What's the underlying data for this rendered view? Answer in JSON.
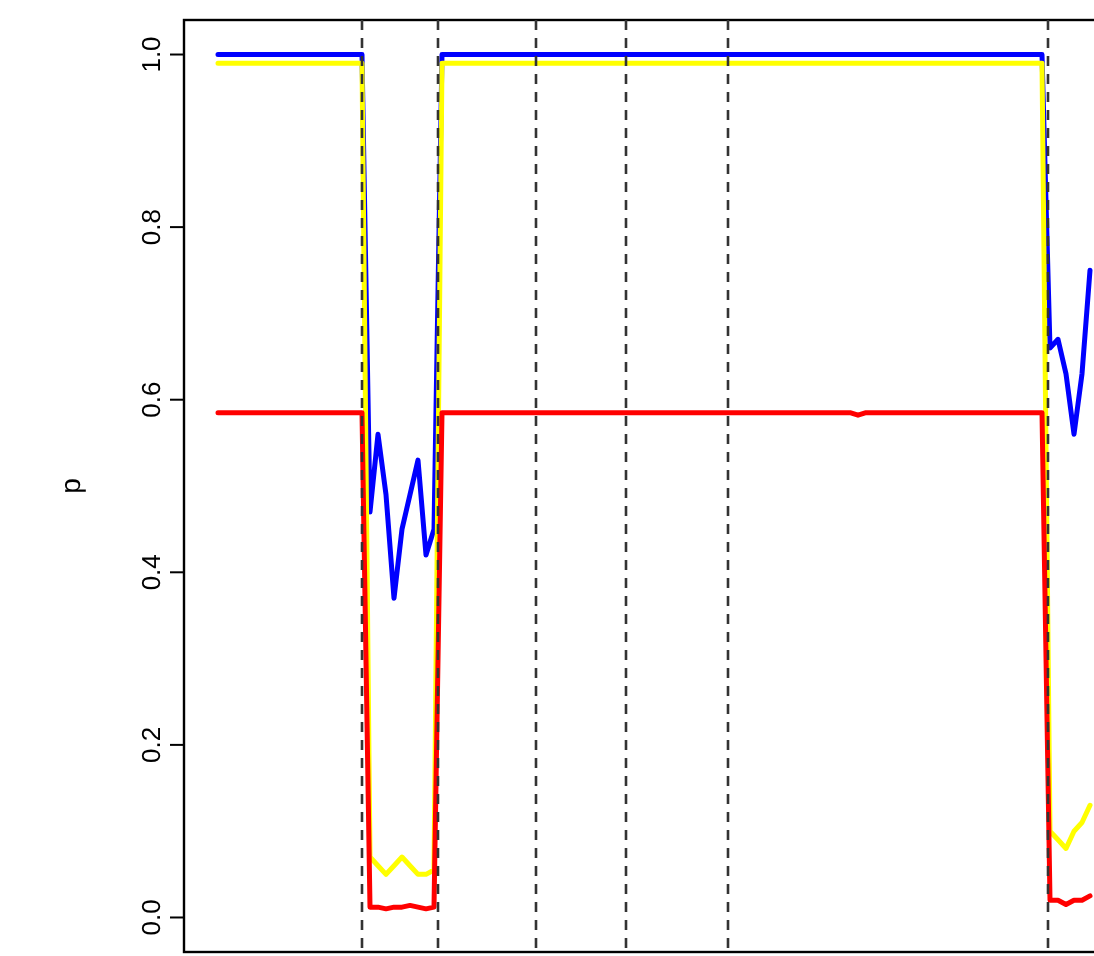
{
  "chart_data": {
    "type": "line",
    "ylabel": "p",
    "categories": [
      null,
      null,
      null,
      null,
      null,
      null,
      null,
      null,
      null,
      null,
      null,
      null,
      null,
      null,
      null,
      null,
      null,
      null,
      null,
      null,
      null,
      null,
      null,
      null,
      null,
      null,
      null,
      null,
      null,
      null,
      null,
      null,
      null,
      null,
      null,
      null,
      null,
      null,
      null,
      null,
      null,
      null,
      null,
      null,
      null,
      null,
      null,
      null,
      null,
      null,
      null,
      null,
      null,
      null,
      null,
      null,
      null,
      null,
      null,
      null,
      null,
      null,
      null,
      null,
      null,
      null,
      null,
      null,
      null,
      null,
      null,
      null,
      null,
      null,
      null,
      null,
      null,
      null,
      null,
      null,
      null,
      null,
      null,
      null,
      null,
      null,
      null,
      null,
      null,
      null,
      null,
      null,
      null,
      null,
      null,
      null,
      null,
      null,
      null,
      null,
      null,
      null,
      null,
      null,
      null,
      null,
      null,
      null,
      null,
      null
    ],
    "ylim": [
      -0.04,
      1.04
    ],
    "yticks": [
      {
        "value": 0,
        "label": "0.0"
      },
      {
        "value": 0.2,
        "label": "0.2"
      },
      {
        "value": 0.4,
        "label": "0.4"
      },
      {
        "value": 0.6,
        "label": "0.6"
      },
      {
        "value": 0.8,
        "label": "0.8"
      },
      {
        "value": 1,
        "label": "1.0"
      }
    ],
    "tick_labels": "y",
    "grid": false,
    "line_style": "solid",
    "marker": "none",
    "series": [
      {
        "color": "#0000ff",
        "values": [
          1,
          1,
          1,
          1,
          1,
          1,
          1,
          1,
          1,
          1,
          1,
          1,
          1,
          1,
          1,
          1,
          1,
          1,
          1,
          0.47,
          0.56,
          0.49,
          0.37,
          0.45,
          0.49,
          0.53,
          0.42,
          0.45,
          1,
          1,
          1,
          1,
          1,
          1,
          1,
          1,
          1,
          1,
          1,
          1,
          1,
          1,
          1,
          1,
          1,
          1,
          1,
          1,
          1,
          1,
          1,
          1,
          1,
          1,
          1,
          1,
          1,
          1,
          1,
          1,
          1,
          1,
          1,
          1,
          1,
          1,
          1,
          1,
          1,
          1,
          1,
          1,
          1,
          1,
          1,
          1,
          1,
          1,
          1,
          1,
          1,
          1,
          1,
          1,
          1,
          1,
          1,
          1,
          1,
          1,
          1,
          1,
          1,
          1,
          1,
          1,
          1,
          1,
          1,
          1,
          1,
          1,
          1,
          1,
          0.66,
          0.67,
          0.63,
          0.56,
          0.63,
          0.75
        ]
      },
      {
        "color": "#ffff00",
        "values": [
          0.99,
          0.99,
          0.99,
          0.99,
          0.99,
          0.99,
          0.99,
          0.99,
          0.99,
          0.99,
          0.99,
          0.99,
          0.99,
          0.99,
          0.99,
          0.99,
          0.99,
          0.99,
          0.99,
          0.07,
          0.06,
          0.05,
          0.06,
          0.07,
          0.06,
          0.05,
          0.05,
          0.055,
          0.99,
          0.99,
          0.99,
          0.99,
          0.99,
          0.99,
          0.99,
          0.99,
          0.99,
          0.99,
          0.99,
          0.99,
          0.99,
          0.99,
          0.99,
          0.99,
          0.99,
          0.99,
          0.99,
          0.99,
          0.99,
          0.99,
          0.99,
          0.99,
          0.99,
          0.99,
          0.99,
          0.99,
          0.99,
          0.99,
          0.99,
          0.99,
          0.99,
          0.99,
          0.99,
          0.99,
          0.99,
          0.99,
          0.99,
          0.99,
          0.99,
          0.99,
          0.99,
          0.99,
          0.99,
          0.99,
          0.99,
          0.99,
          0.99,
          0.99,
          0.99,
          0.99,
          0.99,
          0.99,
          0.99,
          0.99,
          0.99,
          0.99,
          0.99,
          0.99,
          0.99,
          0.99,
          0.99,
          0.99,
          0.99,
          0.99,
          0.99,
          0.99,
          0.99,
          0.99,
          0.99,
          0.99,
          0.99,
          0.99,
          0.99,
          0.99,
          0.1,
          0.09,
          0.08,
          0.1,
          0.11,
          0.13
        ]
      },
      {
        "color": "#ff0000",
        "values": [
          0.585,
          0.585,
          0.585,
          0.585,
          0.585,
          0.585,
          0.585,
          0.585,
          0.585,
          0.585,
          0.585,
          0.585,
          0.585,
          0.585,
          0.585,
          0.585,
          0.585,
          0.585,
          0.585,
          0.012,
          0.012,
          0.01,
          0.012,
          0.012,
          0.014,
          0.012,
          0.01,
          0.012,
          0.585,
          0.585,
          0.585,
          0.585,
          0.585,
          0.585,
          0.585,
          0.585,
          0.585,
          0.585,
          0.585,
          0.585,
          0.585,
          0.585,
          0.585,
          0.585,
          0.585,
          0.585,
          0.585,
          0.585,
          0.585,
          0.585,
          0.585,
          0.585,
          0.585,
          0.585,
          0.585,
          0.585,
          0.585,
          0.585,
          0.585,
          0.585,
          0.585,
          0.585,
          0.585,
          0.585,
          0.585,
          0.585,
          0.585,
          0.585,
          0.585,
          0.585,
          0.585,
          0.585,
          0.585,
          0.585,
          0.585,
          0.585,
          0.585,
          0.585,
          0.585,
          0.585,
          0.582,
          0.585,
          0.585,
          0.585,
          0.585,
          0.585,
          0.585,
          0.585,
          0.585,
          0.585,
          0.585,
          0.585,
          0.585,
          0.585,
          0.585,
          0.585,
          0.585,
          0.585,
          0.585,
          0.585,
          0.585,
          0.585,
          0.585,
          0.585,
          0.02,
          0.02,
          0.015,
          0.02,
          0.02,
          0.025
        ]
      }
    ]
  }
}
